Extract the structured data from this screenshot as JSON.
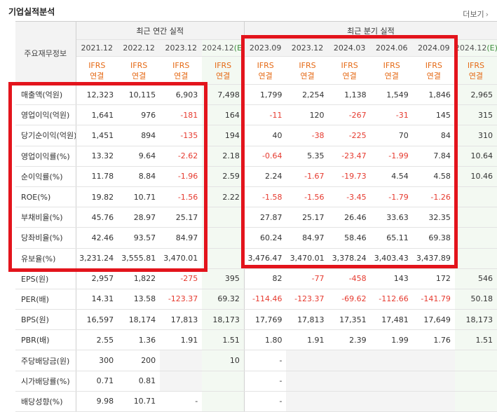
{
  "header": {
    "title": "기업실적분석",
    "more_label": "더보기",
    "more_icon": "chevron-right-icon"
  },
  "table": {
    "label_header": "주요재무정보",
    "group_annual": "최근 연간 실적",
    "group_quarterly": "최근 분기 실적",
    "annual_periods": [
      "2021.12",
      "2022.12",
      "2023.12",
      "2024.12(E)"
    ],
    "quarterly_periods": [
      "2023.09",
      "2023.12",
      "2024.03",
      "2024.06",
      "2024.09",
      "2024.12(E)"
    ],
    "standard_top": "IFRS",
    "standard_bottom": "연결",
    "rows": [
      {
        "label": "매출액(억원)",
        "values": [
          "12,323",
          "10,115",
          "6,903",
          "7,498",
          "1,799",
          "2,254",
          "1,138",
          "1,549",
          "1,846",
          "2,965"
        ]
      },
      {
        "label": "영업이익(억원)",
        "values": [
          "1,641",
          "976",
          "-181",
          "164",
          "-11",
          "120",
          "-267",
          "-31",
          "145",
          "315"
        ]
      },
      {
        "label": "당기순이익(억원)",
        "values": [
          "1,451",
          "894",
          "-135",
          "194",
          "40",
          "-38",
          "-225",
          "70",
          "84",
          "310"
        ]
      },
      {
        "label": "영업이익률(%)",
        "values": [
          "13.32",
          "9.64",
          "-2.62",
          "2.18",
          "-0.64",
          "5.35",
          "-23.47",
          "-1.99",
          "7.84",
          "10.64"
        ]
      },
      {
        "label": "순이익률(%)",
        "values": [
          "11.78",
          "8.84",
          "-1.96",
          "2.59",
          "2.24",
          "-1.67",
          "-19.73",
          "4.54",
          "4.58",
          "10.46"
        ]
      },
      {
        "label": "ROE(%)",
        "values": [
          "19.82",
          "10.71",
          "-1.56",
          "2.22",
          "-1.58",
          "-1.56",
          "-3.45",
          "-1.79",
          "-1.26",
          ""
        ]
      },
      {
        "label": "부채비율(%)",
        "values": [
          "45.76",
          "28.97",
          "25.17",
          "",
          "27.87",
          "25.17",
          "26.46",
          "33.63",
          "32.35",
          ""
        ]
      },
      {
        "label": "당좌비율(%)",
        "values": [
          "42.46",
          "93.57",
          "84.97",
          "",
          "60.24",
          "84.97",
          "58.46",
          "65.11",
          "69.38",
          ""
        ]
      },
      {
        "label": "유보율(%)",
        "values": [
          "3,231.24",
          "3,555.81",
          "3,470.01",
          "",
          "3,476.47",
          "3,470.01",
          "3,378.24",
          "3,403.43",
          "3,437.89",
          ""
        ]
      },
      {
        "label": "EPS(원)",
        "values": [
          "2,957",
          "1,822",
          "-275",
          "395",
          "82",
          "-77",
          "-458",
          "143",
          "172",
          "546"
        ]
      },
      {
        "label": "PER(배)",
        "values": [
          "14.31",
          "13.58",
          "-123.37",
          "69.32",
          "-114.46",
          "-123.37",
          "-69.62",
          "-112.66",
          "-141.79",
          "50.18"
        ]
      },
      {
        "label": "BPS(원)",
        "values": [
          "16,597",
          "18,174",
          "17,813",
          "18,173",
          "17,769",
          "17,813",
          "17,351",
          "17,481",
          "17,649",
          "18,173"
        ]
      },
      {
        "label": "PBR(배)",
        "values": [
          "2.55",
          "1.36",
          "1.91",
          "1.51",
          "1.80",
          "1.91",
          "2.39",
          "1.99",
          "1.76",
          "1.51"
        ]
      },
      {
        "label": "주당배당금(원)",
        "values": [
          "300",
          "200",
          "",
          "10",
          "-",
          "",
          "",
          "",
          "",
          ""
        ]
      },
      {
        "label": "시가배당률(%)",
        "values": [
          "0.71",
          "0.81",
          "",
          "",
          "-",
          "",
          "",
          "",
          "",
          ""
        ]
      },
      {
        "label": "배당성향(%)",
        "values": [
          "9.98",
          "10.71",
          "-",
          "",
          "-",
          "",
          "",
          "",
          "",
          ""
        ]
      }
    ]
  },
  "colors": {
    "negative": "#e63a2f",
    "ifrs_orange": "#e56a16",
    "estimate_green": "#3a8d3a",
    "highlight_red": "#e3141c"
  }
}
